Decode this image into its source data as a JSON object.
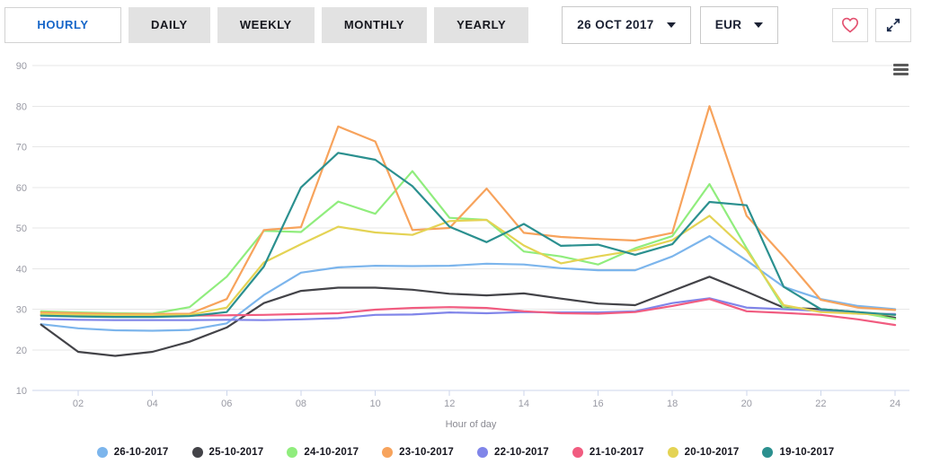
{
  "toolbar": {
    "tabs": [
      {
        "label": "HOURLY",
        "active": true
      },
      {
        "label": "DAILY",
        "active": false
      },
      {
        "label": "WEEKLY",
        "active": false
      },
      {
        "label": "MONTHLY",
        "active": false
      },
      {
        "label": "YEARLY",
        "active": false
      }
    ],
    "date_selector": {
      "value": "26 OCT 2017",
      "icon": "caret-down-icon"
    },
    "currency_selector": {
      "value": "EUR",
      "icon": "caret-down-icon"
    },
    "favorite_icon": "heart-icon",
    "expand_icon": "expand-arrows-icon",
    "heart_color": "#e3506f",
    "expand_color": "#1b2a4a"
  },
  "chart": {
    "menu_icon": "hamburger-icon",
    "grid_color": "#e7e7e7",
    "axis_line_color": "#ccd6eb",
    "axis_text_color": "#999aa4"
  },
  "chart_data": {
    "type": "line",
    "title": "",
    "xlabel": "Hour of day",
    "ylabel": "",
    "ylim": [
      10,
      90
    ],
    "y_ticks": [
      10,
      20,
      30,
      40,
      50,
      60,
      70,
      80,
      90
    ],
    "x": [
      1,
      2,
      3,
      4,
      5,
      6,
      7,
      8,
      9,
      10,
      11,
      12,
      13,
      14,
      15,
      16,
      17,
      18,
      19,
      20,
      21,
      22,
      23,
      24
    ],
    "x_tick_values": [
      2,
      4,
      6,
      8,
      10,
      12,
      14,
      16,
      18,
      20,
      22,
      24
    ],
    "x_tick_labels": [
      "02",
      "04",
      "06",
      "08",
      "10",
      "12",
      "14",
      "16",
      "18",
      "20",
      "22",
      "24"
    ],
    "grid": true,
    "legend_position": "bottom",
    "series": [
      {
        "name": "26-10-2017",
        "color": "#7cb5ec",
        "values": [
          26.3,
          25.3,
          24.8,
          24.7,
          24.9,
          26.5,
          33.5,
          39,
          40.3,
          40.7,
          40.6,
          40.7,
          41.2,
          41,
          40.1,
          39.6,
          39.6,
          43,
          48,
          42,
          35.5,
          32.5,
          30.8,
          30
        ]
      },
      {
        "name": "25-10-2017",
        "color": "#434348",
        "values": [
          26.2,
          19.5,
          18.5,
          19.5,
          22,
          25.5,
          31.5,
          34.5,
          35.3,
          35.3,
          34.8,
          33.8,
          33.4,
          33.9,
          32.6,
          31.4,
          31,
          34.5,
          38,
          34.3,
          30.4,
          30,
          29.3,
          27.9
        ]
      },
      {
        "name": "24-10-2017",
        "color": "#90ed7d",
        "values": [
          29.5,
          29.2,
          29,
          28.9,
          30.5,
          38,
          49.3,
          49,
          56.5,
          53.5,
          64,
          52.5,
          52,
          44.2,
          43,
          41,
          45,
          48,
          60.8,
          45,
          30.3,
          29.5,
          29.2,
          27.6
        ]
      },
      {
        "name": "23-10-2017",
        "color": "#f7a35c",
        "values": [
          29.2,
          29,
          28.8,
          28.8,
          28.9,
          32.5,
          49.5,
          50.2,
          75,
          71.3,
          49.5,
          50,
          59.7,
          48.8,
          47.8,
          47.3,
          46.9,
          48.8,
          80,
          53,
          43,
          32.3,
          30.4,
          29.8
        ]
      },
      {
        "name": "22-10-2017",
        "color": "#8085e9",
        "values": [
          27.6,
          27.4,
          27.3,
          27.3,
          27.3,
          27.4,
          27.3,
          27.5,
          27.8,
          28.6,
          28.7,
          29.2,
          29,
          29.3,
          29.2,
          29.2,
          29.5,
          31.5,
          32.7,
          30.4,
          30,
          29.6,
          28.9,
          28.8
        ]
      },
      {
        "name": "21-10-2017",
        "color": "#f15c80",
        "values": [
          28.6,
          28.4,
          28.3,
          28.3,
          28.4,
          28.5,
          28.6,
          28.8,
          29,
          29.9,
          30.3,
          30.5,
          30.3,
          29.5,
          29,
          28.9,
          29.3,
          30.8,
          32.5,
          29.5,
          29.1,
          28.6,
          27.5,
          26.1
        ]
      },
      {
        "name": "20-10-2017",
        "color": "#e4d354",
        "values": [
          28.8,
          28.6,
          28.5,
          28.5,
          28.6,
          30.4,
          41.5,
          46,
          50.3,
          48.9,
          48.3,
          51.7,
          52,
          45.7,
          41.3,
          43,
          44.5,
          47,
          53,
          44.5,
          31,
          29.3,
          28.9,
          28.6
        ]
      },
      {
        "name": "19-10-2017",
        "color": "#2b908f",
        "values": [
          28.4,
          28.2,
          28.1,
          28.1,
          28.3,
          29.3,
          40.5,
          60,
          68.5,
          66.8,
          60.3,
          50.3,
          46.5,
          51,
          45.6,
          45.9,
          43.4,
          46,
          56.4,
          55.6,
          35.5,
          30,
          29.3,
          28.6
        ]
      }
    ]
  }
}
